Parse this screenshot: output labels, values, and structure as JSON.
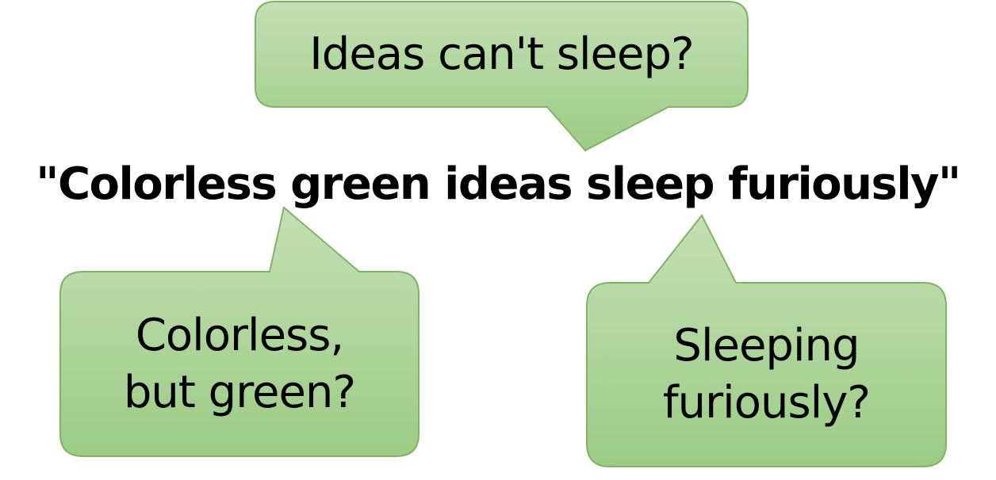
{
  "sentence": "\"Colorless green ideas sleep furiously\"",
  "bubbles": {
    "top": {
      "line1": "Ideas can't sleep?"
    },
    "left": {
      "line1": "Colorless,",
      "line2": "but green?"
    },
    "right": {
      "line1": "Sleeping",
      "line2": "furiously?"
    }
  },
  "colors": {
    "bubble_fill_top": "#c3e0b4",
    "bubble_fill_bottom": "#9ccc84",
    "bubble_stroke": "#7fb463",
    "text": "#000000"
  }
}
